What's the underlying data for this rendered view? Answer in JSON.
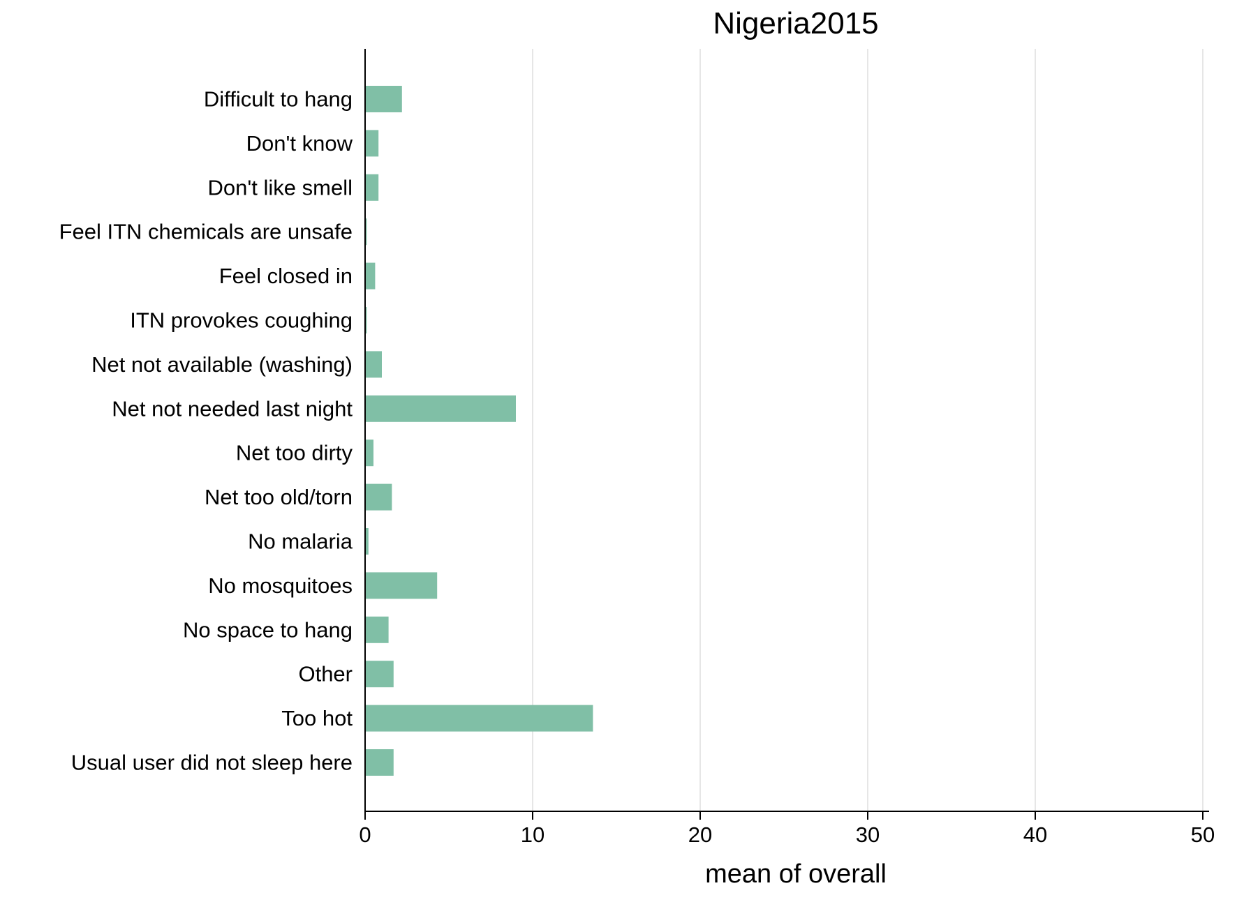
{
  "chart_data": {
    "type": "bar",
    "orientation": "horizontal",
    "title": "Nigeria2015",
    "xlabel": "mean of overall",
    "ylabel": "",
    "xlim": [
      0,
      52
    ],
    "xticks": [
      0,
      10,
      20,
      30,
      40,
      50
    ],
    "grid": true,
    "categories": [
      "Difficult to hang",
      "Don't know",
      "Don't like smell",
      "Feel ITN chemicals are unsafe",
      "Feel closed in",
      "ITN provokes coughing",
      "Net not available (washing)",
      "Net not needed last night",
      "Net too dirty",
      "Net too old/torn",
      "No malaria",
      "No mosquitoes",
      "No space to hang",
      "Other",
      "Too hot",
      "Usual user did not sleep here"
    ],
    "values": [
      2.2,
      0.8,
      0.8,
      0.1,
      0.6,
      0.1,
      1.0,
      9.0,
      0.5,
      1.6,
      0.2,
      4.3,
      1.4,
      1.7,
      13.6,
      1.7
    ],
    "colors": {
      "bar": "#80bfa6",
      "grid": "#e6e6e6",
      "axis": "#000000"
    }
  }
}
